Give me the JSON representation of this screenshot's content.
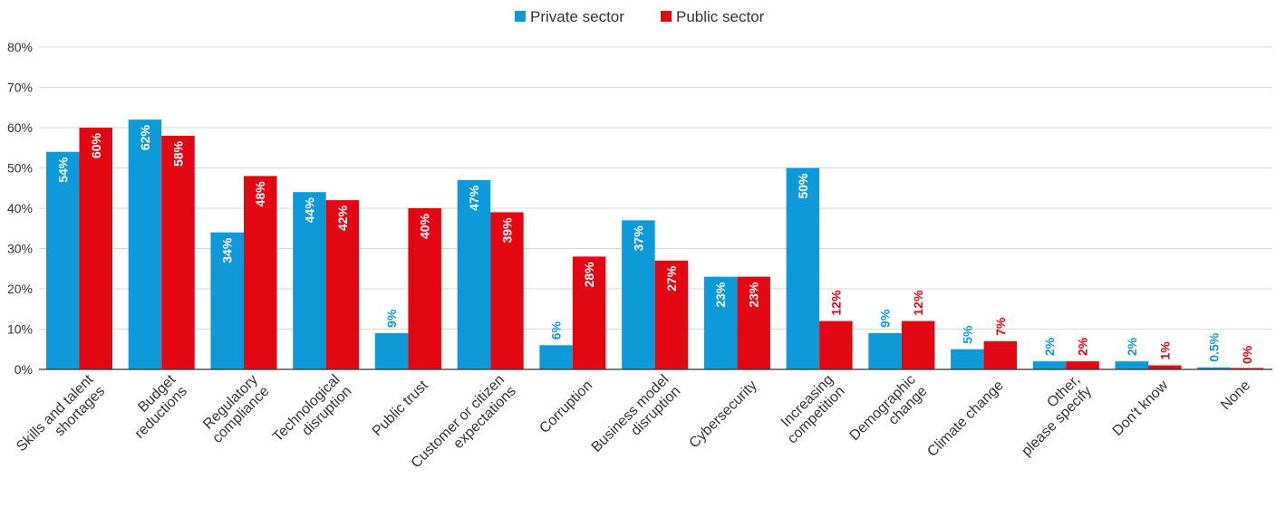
{
  "chart_data": {
    "type": "bar",
    "title": "",
    "xlabel": "",
    "ylabel": "",
    "ylim": [
      0,
      80
    ],
    "yticks": [
      "0%",
      "10%",
      "20%",
      "30%",
      "40%",
      "50%",
      "60%",
      "70%",
      "80%"
    ],
    "grid": true,
    "legend_position": "top-center",
    "categories": [
      [
        "Skills and talent",
        "shortages"
      ],
      [
        "Budget",
        "reductions"
      ],
      [
        "Regulatory",
        "compliance"
      ],
      [
        "Technological",
        "disruption"
      ],
      [
        "Public trust"
      ],
      [
        "Customer or citizen",
        "expectations"
      ],
      [
        "Corruption"
      ],
      [
        "Business model",
        "disruption"
      ],
      [
        "Cybersecurity"
      ],
      [
        "Increasing",
        "competition"
      ],
      [
        "Demographic",
        "change"
      ],
      [
        "Climate change"
      ],
      [
        "Other,",
        "please specify"
      ],
      [
        "Don't know"
      ],
      [
        "None"
      ]
    ],
    "series": [
      {
        "name": "Private sector",
        "color": "#0e9ad8",
        "values": [
          54,
          62,
          34,
          44,
          9,
          47,
          6,
          37,
          23,
          50,
          9,
          5,
          2,
          2,
          0.5
        ],
        "labels": [
          "54%",
          "62%",
          "34%",
          "44%",
          "9%",
          "47%",
          "6%",
          "37%",
          "23%",
          "50%",
          "9%",
          "5%",
          "2%",
          "2%",
          "0.5%"
        ]
      },
      {
        "name": "Public sector",
        "color": "#e30613",
        "values": [
          60,
          58,
          48,
          42,
          40,
          39,
          28,
          27,
          23,
          12,
          12,
          7,
          2,
          1,
          0
        ],
        "labels": [
          "60%",
          "58%",
          "48%",
          "42%",
          "40%",
          "39%",
          "28%",
          "27%",
          "23%",
          "12%",
          "12%",
          "7%",
          "2%",
          "1%",
          "0%"
        ]
      }
    ]
  }
}
